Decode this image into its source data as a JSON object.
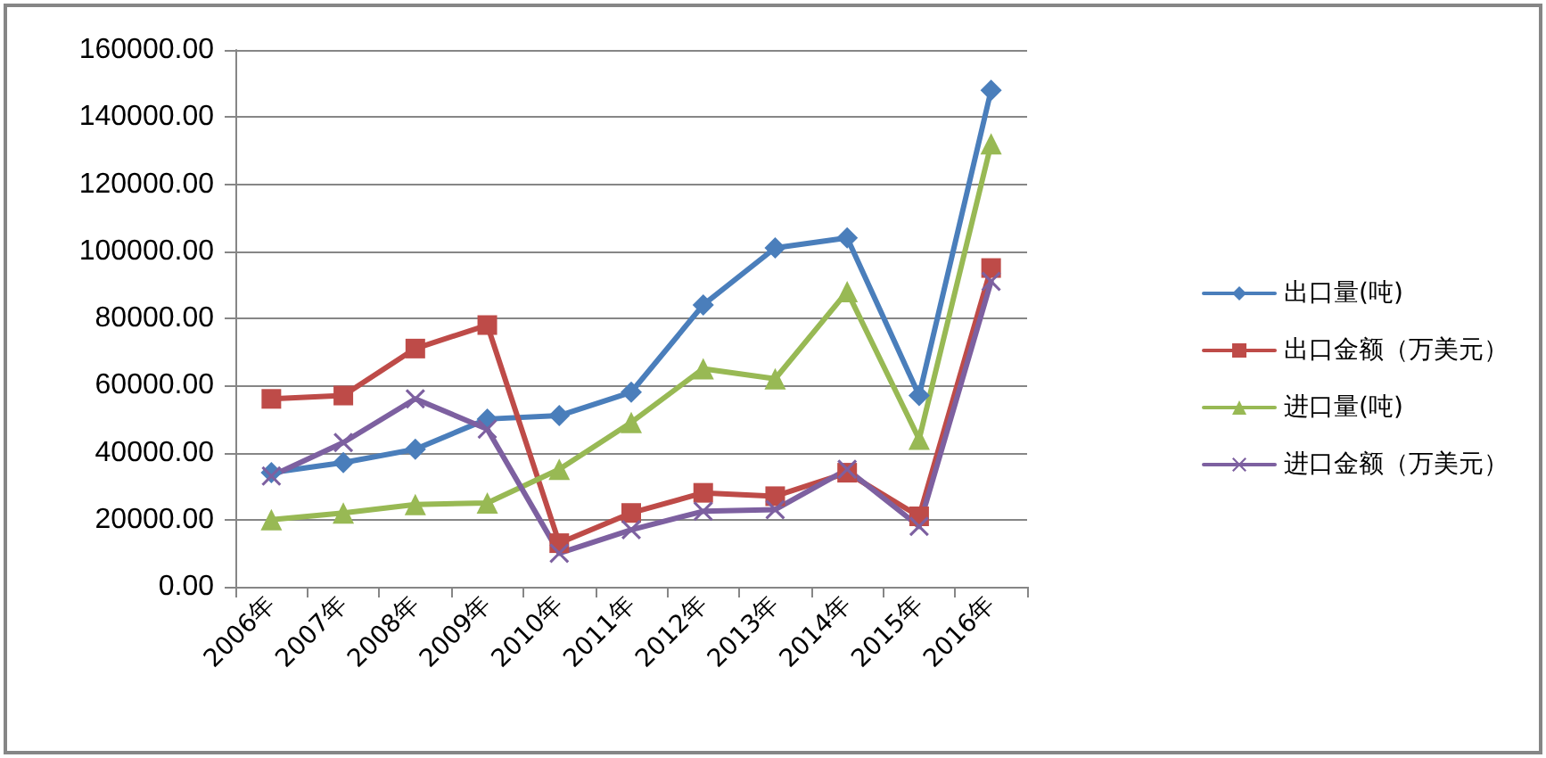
{
  "chart_data": {
    "type": "line",
    "categories": [
      "2006年",
      "2007年",
      "2008年",
      "2009年",
      "2010年",
      "2011年",
      "2012年",
      "2013年",
      "2014年",
      "2015年",
      "2016年"
    ],
    "series": [
      {
        "name": "出口量(吨)",
        "color": "#4a7ebb",
        "marker": "diamond",
        "values": [
          34000,
          37000,
          41000,
          50000,
          51000,
          58000,
          84000,
          101000,
          104000,
          57000,
          148000
        ]
      },
      {
        "name": "出口金额（万美元）",
        "color": "#be4b48",
        "marker": "square",
        "values": [
          56000,
          57000,
          71000,
          78000,
          13000,
          22000,
          28000,
          27000,
          34000,
          21000,
          95000
        ]
      },
      {
        "name": "进口量(吨)",
        "color": "#98b954",
        "marker": "triangle",
        "values": [
          20000,
          22000,
          24500,
          25000,
          35000,
          49000,
          65000,
          62000,
          88000,
          44000,
          132000
        ]
      },
      {
        "name": "进口金额（万美元）",
        "color": "#7d60a0",
        "marker": "cross",
        "values": [
          33000,
          43000,
          56000,
          47000,
          10000,
          17000,
          22500,
          23000,
          35000,
          18000,
          91000
        ]
      }
    ],
    "ylim": [
      0,
      160000
    ],
    "yticks": [
      {
        "value": 0,
        "label": "0.00"
      },
      {
        "value": 20000,
        "label": "20000.00"
      },
      {
        "value": 40000,
        "label": "40000.00"
      },
      {
        "value": 60000,
        "label": "60000.00"
      },
      {
        "value": 80000,
        "label": "80000.00"
      },
      {
        "value": 100000,
        "label": "100000.00"
      },
      {
        "value": 120000,
        "label": "120000.00"
      },
      {
        "value": 140000,
        "label": "140000.00"
      },
      {
        "value": 160000,
        "label": "160000.00"
      }
    ],
    "grid": "y",
    "legend": "right",
    "line_style": "solid"
  }
}
